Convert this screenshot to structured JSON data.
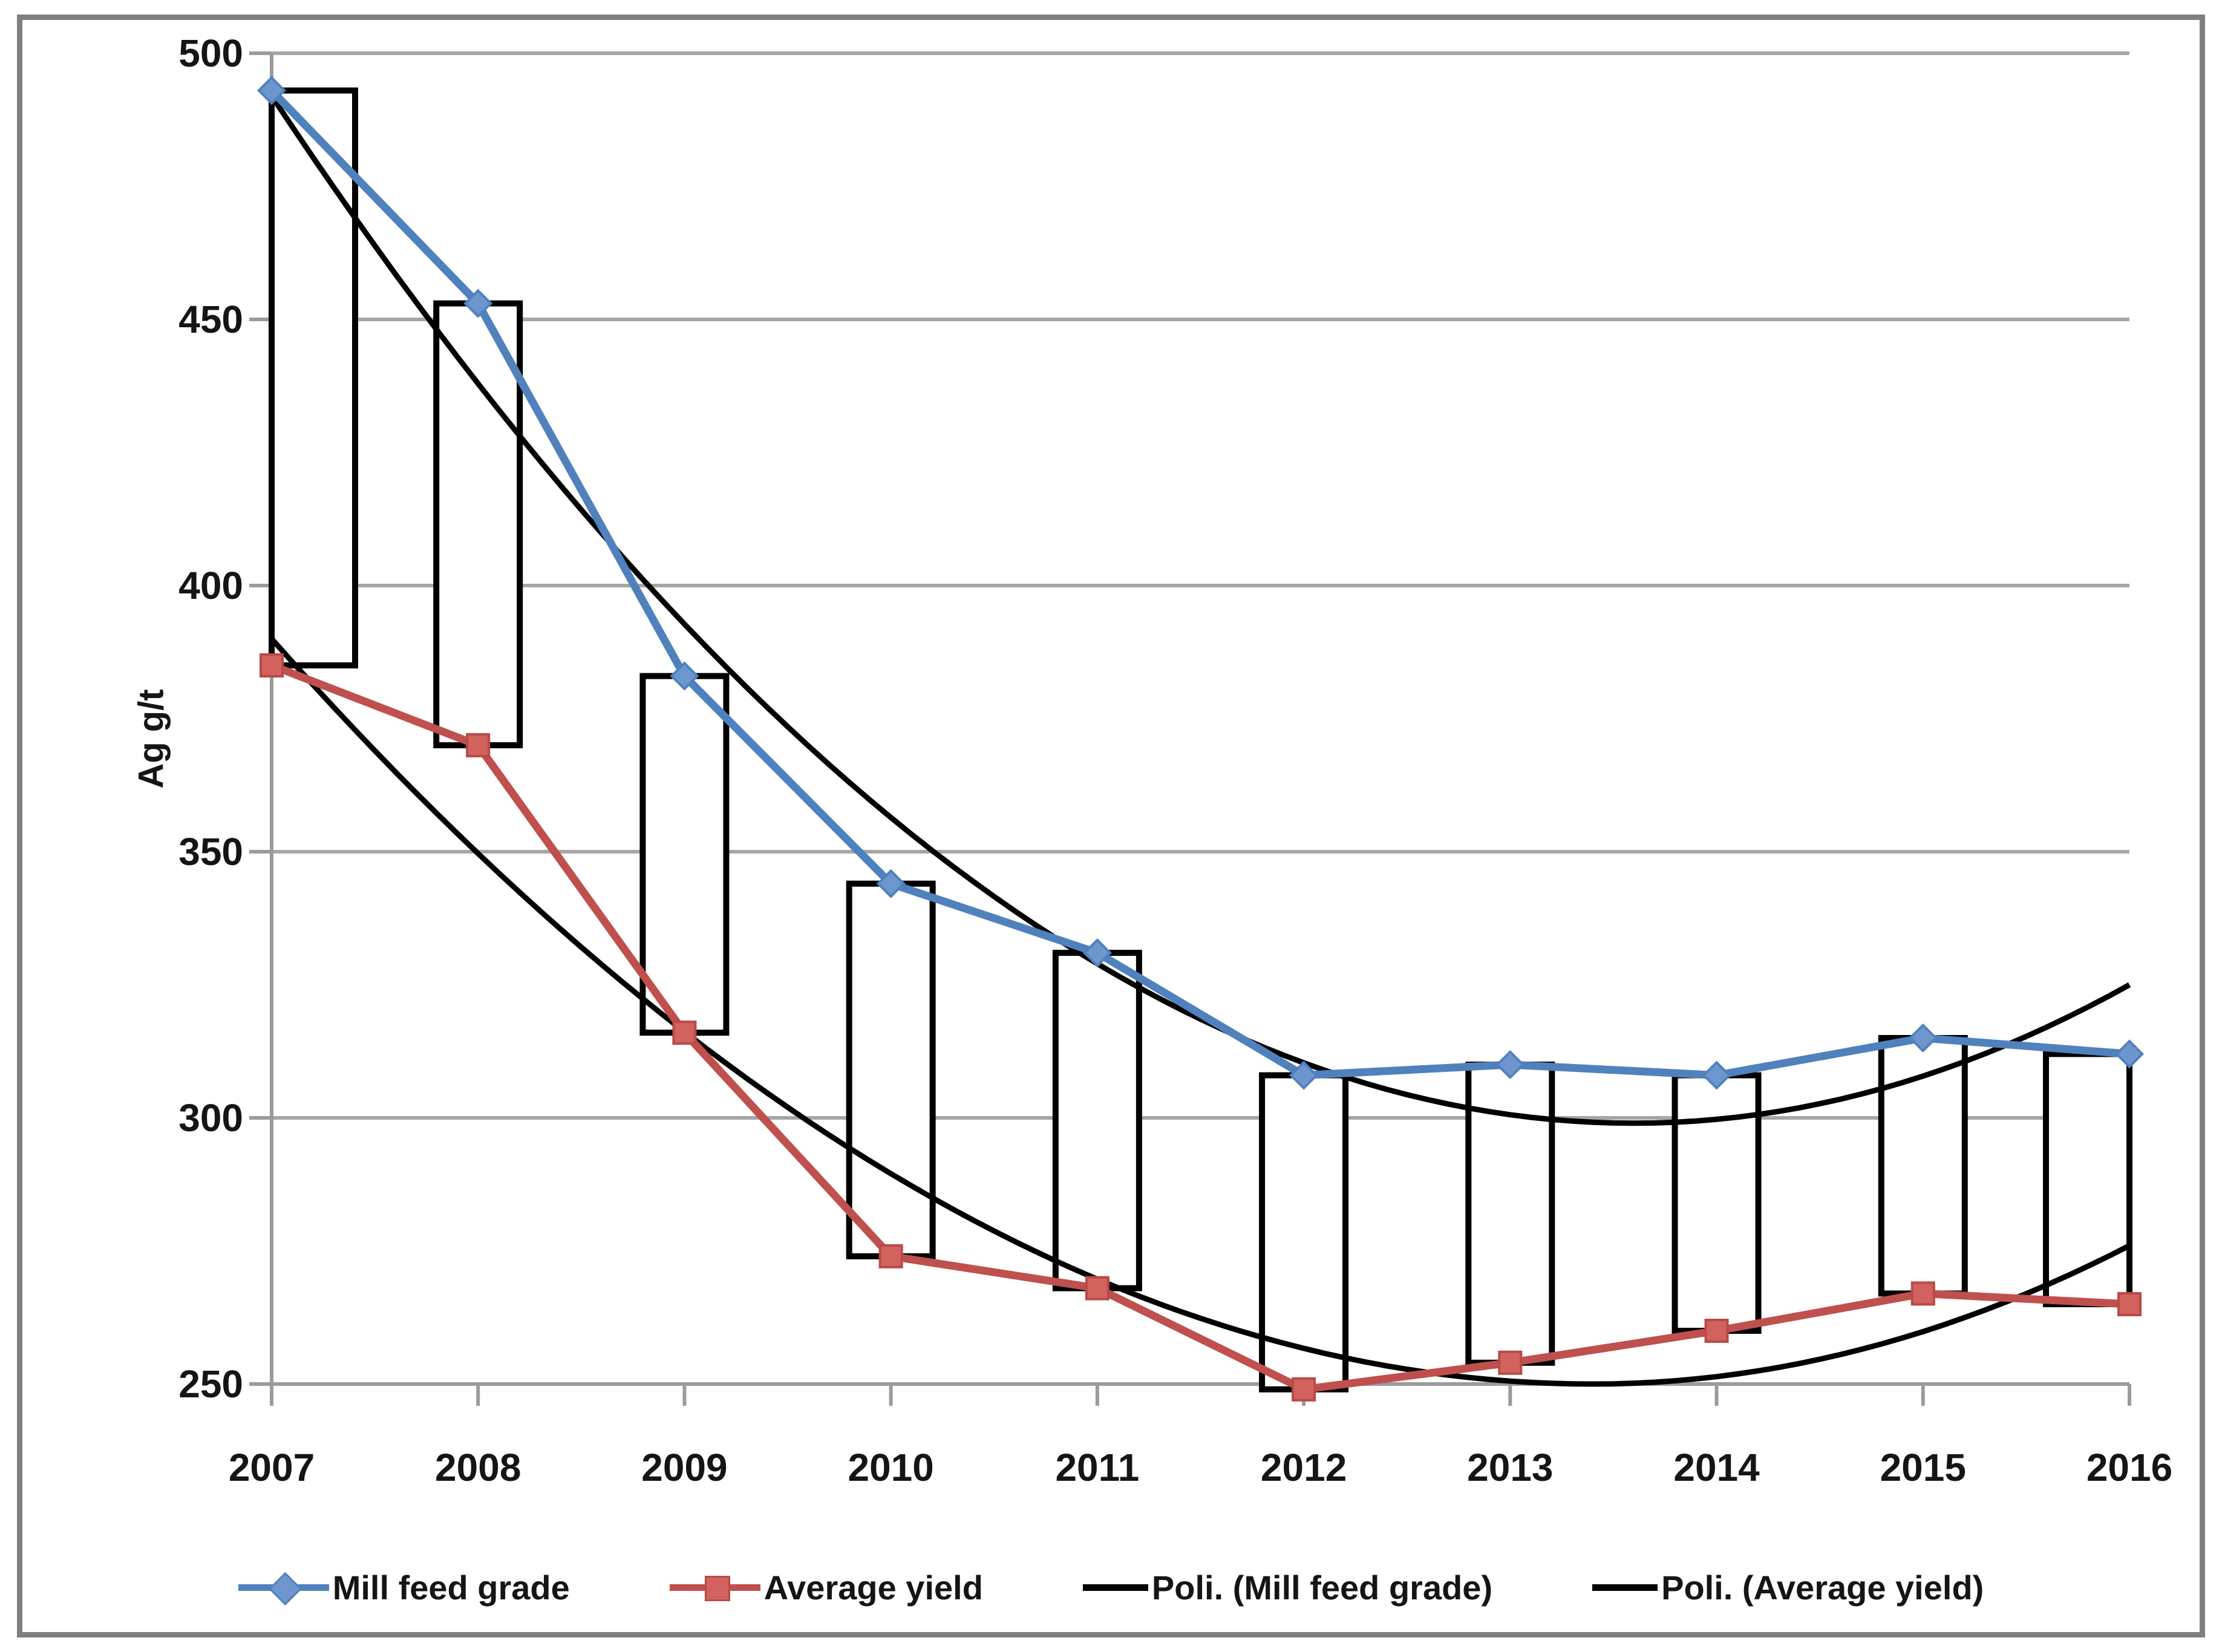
{
  "chart_data": {
    "type": "line",
    "title": "",
    "xlabel": "",
    "ylabel": "Ag g/t",
    "ylim": [
      250,
      500
    ],
    "ytick_step": 50,
    "grid": true,
    "legend_position": "bottom",
    "categories": [
      "2007",
      "2008",
      "2009",
      "2010",
      "2011",
      "2012",
      "2013",
      "2014",
      "2015",
      "2016"
    ],
    "series": [
      {
        "name": "Mill feed grade",
        "marker": "diamond",
        "color": "#4F81BD",
        "values": [
          493,
          453,
          383,
          344,
          331,
          308,
          310,
          308,
          315,
          312
        ]
      },
      {
        "name": "Average yield",
        "marker": "square",
        "color": "#C0504D",
        "values": [
          385,
          370,
          316,
          274,
          268,
          249,
          254,
          260,
          267,
          265
        ]
      }
    ],
    "trendlines": [
      {
        "name": "Poli. (Mill feed grade)",
        "color": "#000000",
        "fit_of": "Mill feed grade",
        "start_value": 492,
        "vertex_year": 2013.6,
        "vertex_value": 299,
        "end_value": 325
      },
      {
        "name": "Poli. (Average yield)",
        "color": "#000000",
        "fit_of": "Average yield",
        "start_value": 390,
        "vertex_year": 2013.4,
        "vertex_value": 250,
        "end_value": 276
      }
    ],
    "updown_bars": {
      "between": [
        "Mill feed grade",
        "Average yield"
      ],
      "fill": "#FFFFFF",
      "stroke": "#000000"
    }
  },
  "colors": {
    "mill_feed_grade": "#4F81BD",
    "mill_marker_fill": "#6D96CE",
    "average_yield": "#C0504D",
    "avg_marker_fill": "#D2625E",
    "trendline": "#000000",
    "gridline": "#A6A6A6",
    "axis": "#9B9B9B",
    "frame_border": "#7F7F7F",
    "text": "#151515",
    "bar_fill": "#FFFFFF",
    "bar_stroke": "#000000"
  }
}
